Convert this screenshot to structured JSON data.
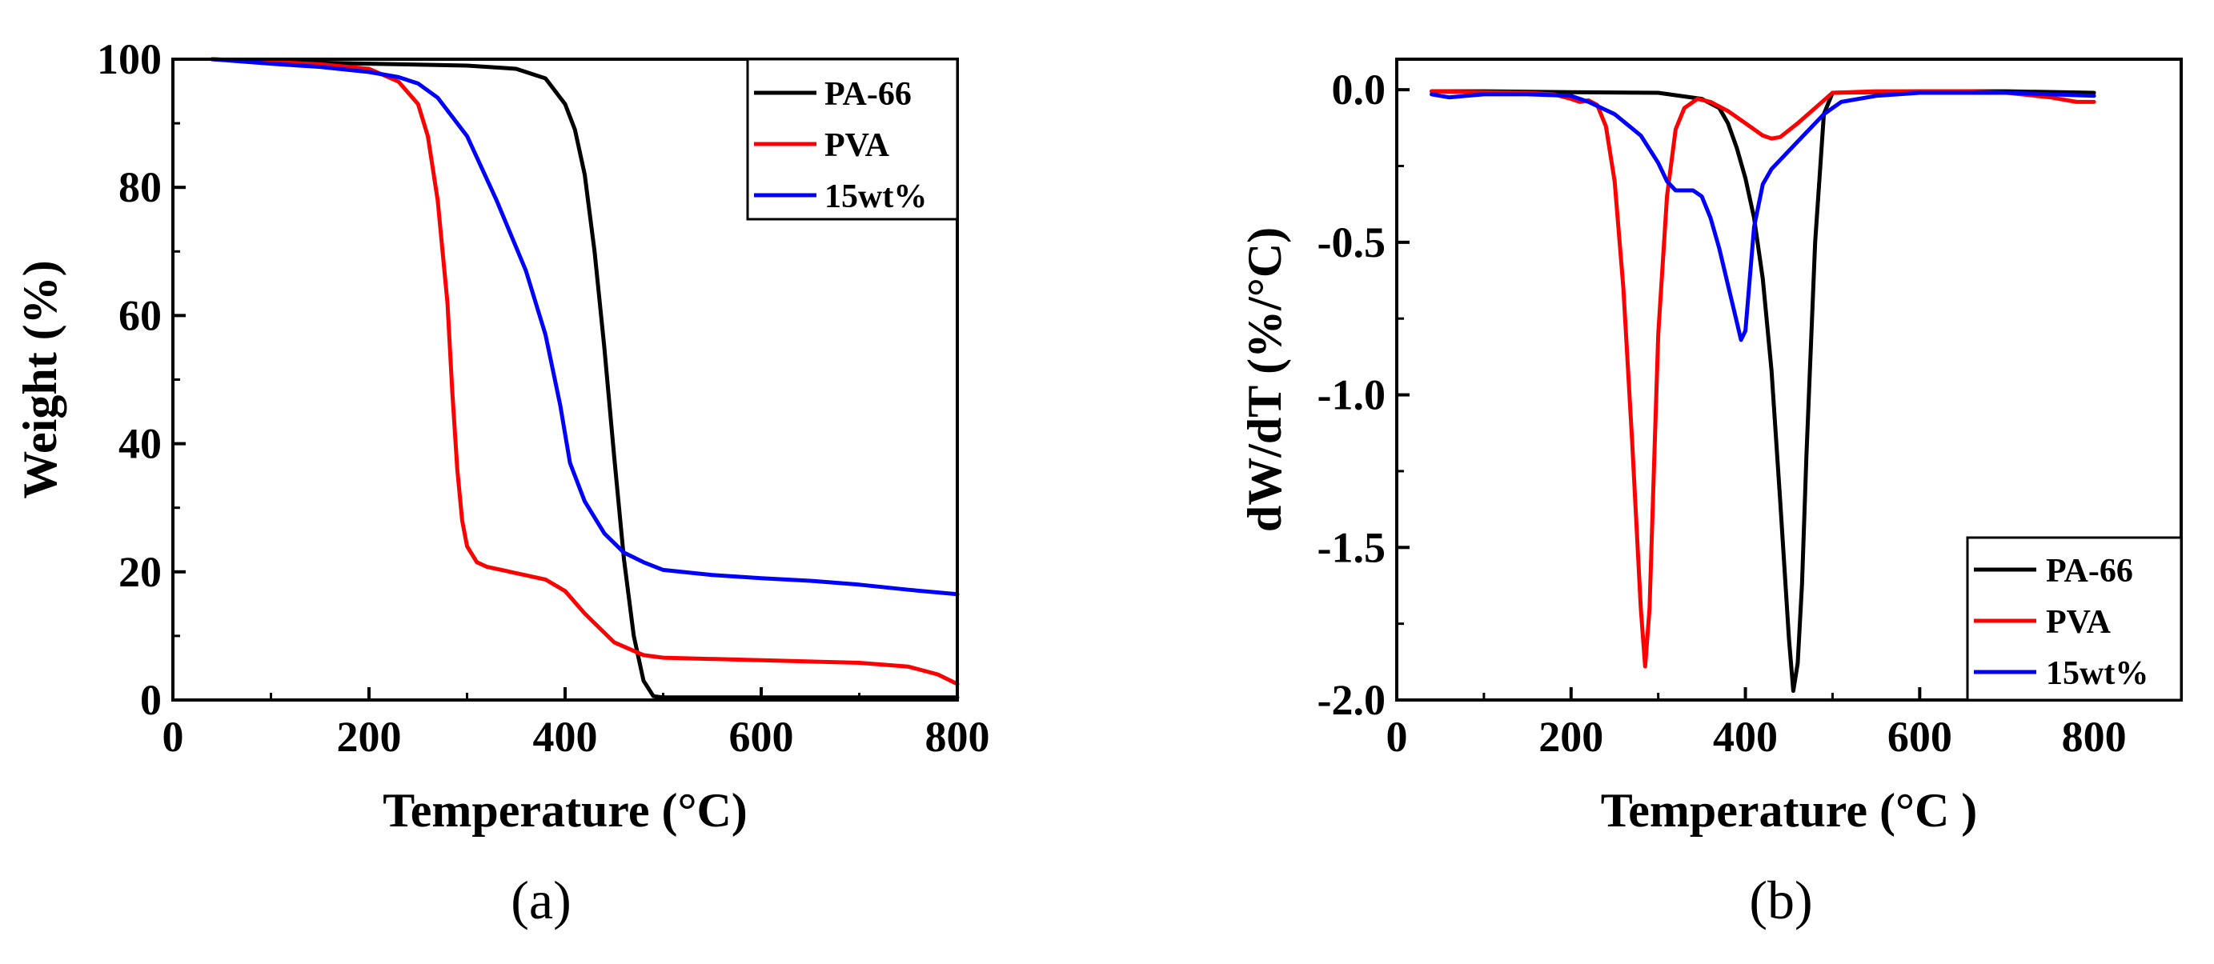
{
  "chart_data": [
    {
      "id": "a",
      "type": "line",
      "panel_label": "(a)",
      "xlabel": "Temperature (°C)",
      "ylabel": "Weight (%)",
      "xlim": [
        0,
        800
      ],
      "ylim": [
        0,
        100
      ],
      "xticks": [
        0,
        200,
        400,
        600,
        800
      ],
      "yticks": [
        0,
        20,
        40,
        60,
        80,
        100
      ],
      "grid": false,
      "legend_position": "top-right",
      "series": [
        {
          "name": "PA-66",
          "color": "#000000",
          "x": [
            40,
            100,
            200,
            300,
            350,
            380,
            400,
            410,
            420,
            430,
            440,
            450,
            460,
            470,
            480,
            490,
            500,
            600,
            700,
            800
          ],
          "y": [
            100,
            99.6,
            99.3,
            99.0,
            98.5,
            97.0,
            93.0,
            89.0,
            82.0,
            70.0,
            55.0,
            38.0,
            22.0,
            10.0,
            3.0,
            0.6,
            0.4,
            0.4,
            0.4,
            0.4
          ]
        },
        {
          "name": "PVA",
          "color": "#ff0000",
          "x": [
            40,
            100,
            150,
            200,
            230,
            250,
            260,
            270,
            280,
            285,
            290,
            295,
            300,
            310,
            320,
            350,
            380,
            400,
            420,
            450,
            480,
            500,
            600,
            700,
            750,
            780,
            800
          ],
          "y": [
            100,
            99.6,
            99.2,
            98.5,
            96.5,
            93.0,
            88.0,
            78.0,
            62.0,
            48.0,
            36.0,
            28.0,
            24.0,
            21.5,
            20.8,
            19.8,
            18.8,
            17.0,
            13.5,
            9.0,
            7.0,
            6.6,
            6.2,
            5.8,
            5.2,
            4.0,
            2.5
          ]
        },
        {
          "name": "15wt%",
          "color": "#0000ff",
          "x": [
            40,
            100,
            150,
            200,
            230,
            250,
            270,
            300,
            330,
            360,
            380,
            395,
            405,
            420,
            440,
            460,
            480,
            500,
            550,
            600,
            650,
            700,
            750,
            800
          ],
          "y": [
            100,
            99.3,
            98.8,
            98.0,
            97.2,
            96.2,
            94.0,
            88.0,
            78.0,
            67.0,
            57.0,
            46.0,
            37.0,
            31.0,
            26.0,
            23.0,
            21.5,
            20.3,
            19.5,
            19.0,
            18.6,
            18.0,
            17.2,
            16.5
          ]
        }
      ]
    },
    {
      "id": "b",
      "type": "line",
      "panel_label": "(b)",
      "xlabel": "Temperature (°C )",
      "ylabel": "dW/dT (%/°C)",
      "xlim": [
        0,
        900
      ],
      "ylim": [
        -2.0,
        0.1
      ],
      "xticks": [
        0,
        200,
        400,
        600,
        800
      ],
      "xtick_labels": [
        "0",
        "200",
        "400",
        "600",
        "800"
      ],
      "yticks": [
        0.0,
        -0.5,
        -1.0,
        -1.5,
        -2.0
      ],
      "ytick_labels": [
        "0.0",
        "-0.5",
        "-1.0",
        "-1.5",
        "-2.0"
      ],
      "grid": false,
      "legend_position": "bottom-right",
      "series": [
        {
          "name": "PA-66",
          "color": "#000000",
          "x": [
            40,
            100,
            200,
            300,
            350,
            370,
            380,
            390,
            400,
            410,
            420,
            430,
            440,
            450,
            455,
            460,
            465,
            470,
            480,
            490,
            500,
            600,
            700,
            800
          ],
          "y": [
            -0.005,
            -0.005,
            -0.008,
            -0.01,
            -0.03,
            -0.06,
            -0.11,
            -0.19,
            -0.29,
            -0.42,
            -0.62,
            -0.92,
            -1.35,
            -1.8,
            -1.97,
            -1.88,
            -1.62,
            -1.2,
            -0.5,
            -0.08,
            -0.01,
            -0.005,
            -0.005,
            -0.01
          ]
        },
        {
          "name": "PVA",
          "color": "#ff0000",
          "x": [
            40,
            100,
            150,
            180,
            200,
            210,
            220,
            230,
            240,
            250,
            260,
            270,
            280,
            285,
            290,
            295,
            300,
            310,
            320,
            330,
            345,
            360,
            380,
            400,
            420,
            430,
            440,
            460,
            480,
            500,
            550,
            600,
            650,
            700,
            750,
            780,
            800
          ],
          "y": [
            -0.005,
            -0.008,
            -0.01,
            -0.015,
            -0.03,
            -0.04,
            -0.035,
            -0.05,
            -0.12,
            -0.3,
            -0.65,
            -1.15,
            -1.7,
            -1.89,
            -1.7,
            -1.25,
            -0.8,
            -0.35,
            -0.13,
            -0.06,
            -0.03,
            -0.04,
            -0.07,
            -0.11,
            -0.15,
            -0.16,
            -0.155,
            -0.11,
            -0.06,
            -0.01,
            -0.005,
            -0.005,
            -0.005,
            -0.01,
            -0.025,
            -0.04,
            -0.04
          ]
        },
        {
          "name": "15wt%",
          "color": "#0000ff",
          "x": [
            40,
            60,
            80,
            100,
            150,
            200,
            220,
            250,
            280,
            300,
            310,
            320,
            330,
            340,
            350,
            360,
            370,
            380,
            390,
            395,
            400,
            405,
            410,
            420,
            430,
            450,
            470,
            490,
            510,
            550,
            600,
            650,
            700,
            750,
            800
          ],
          "y": [
            -0.015,
            -0.025,
            -0.02,
            -0.015,
            -0.015,
            -0.02,
            -0.04,
            -0.08,
            -0.15,
            -0.24,
            -0.3,
            -0.33,
            -0.33,
            -0.33,
            -0.35,
            -0.42,
            -0.52,
            -0.64,
            -0.76,
            -0.82,
            -0.79,
            -0.62,
            -0.45,
            -0.31,
            -0.26,
            -0.2,
            -0.14,
            -0.08,
            -0.04,
            -0.02,
            -0.01,
            -0.01,
            -0.01,
            -0.015,
            -0.02
          ]
        }
      ]
    }
  ]
}
